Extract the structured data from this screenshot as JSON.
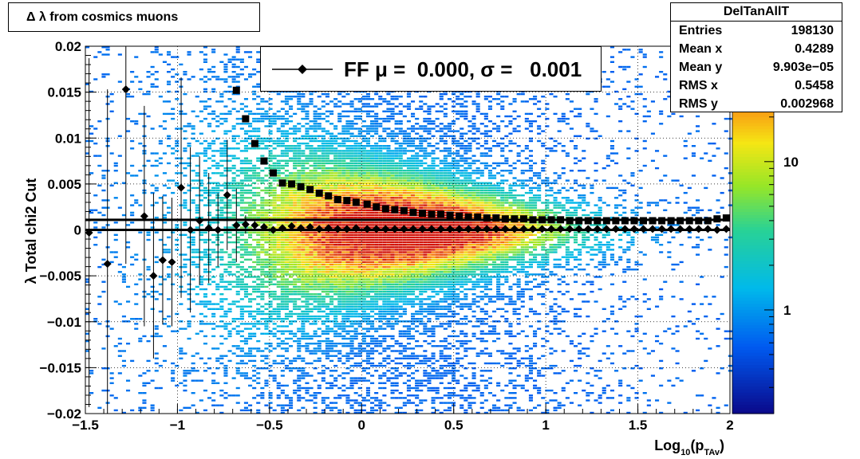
{
  "title": "Δ λ from cosmics muons",
  "stats": {
    "name": "DelTanAllT",
    "rows": [
      {
        "label": "Entries",
        "value": "198130"
      },
      {
        "label": "Mean x",
        "value": "0.4289"
      },
      {
        "label": "Mean y",
        "value": "9.903e−05"
      },
      {
        "label": "RMS x",
        "value": "0.5458"
      },
      {
        "label": "RMS y",
        "value": "0.002968"
      }
    ]
  },
  "legend": {
    "label": "FF μ =  0.000, σ =   0.001"
  },
  "colorbar": {
    "ticks": [
      {
        "label": "1",
        "value": 1
      },
      {
        "label": "10",
        "value": 10
      }
    ],
    "range": [
      0.2,
      60
    ]
  },
  "chart_data": {
    "type": "heatmap",
    "title": "Δ λ from cosmics muons",
    "xlabel_parts": {
      "base": "Log",
      "sub1": "10",
      "mid": "(p",
      "sub2": "TAv",
      "end": ")"
    },
    "ylabel": "λ  Total chi2 Cut",
    "xlim": [
      -1.5,
      2.0
    ],
    "ylim": [
      -0.02,
      0.02
    ],
    "grid": true,
    "colorbar_scale": "log",
    "xticks": [
      {
        "label": "−1.5",
        "value": -1.5
      },
      {
        "label": "−1",
        "value": -1
      },
      {
        "label": "−0.5",
        "value": -0.5
      },
      {
        "label": "0",
        "value": 0
      },
      {
        "label": "0.5",
        "value": 0.5
      },
      {
        "label": "1",
        "value": 1
      },
      {
        "label": "1.5",
        "value": 1.5
      },
      {
        "label": "2",
        "value": 2
      }
    ],
    "yticks": [
      {
        "label": "−0.02",
        "value": -0.02
      },
      {
        "label": "−0.015",
        "value": -0.015
      },
      {
        "label": "−0.01",
        "value": -0.01
      },
      {
        "label": "−0.005",
        "value": -0.005
      },
      {
        "label": "0",
        "value": 0
      },
      {
        "label": "0.005",
        "value": 0.005
      },
      {
        "label": "0.01",
        "value": 0.01
      },
      {
        "label": "0.015",
        "value": 0.015
      },
      {
        "label": "0.02",
        "value": 0.02
      }
    ],
    "series": [
      {
        "name": "FF",
        "marker": "diamond",
        "points": [
          {
            "x": -1.48,
            "y": -0.0003,
            "err": 0.019
          },
          {
            "x": -1.38,
            "y": -0.0037,
            "err": 0.019
          },
          {
            "x": -1.28,
            "y": 0.0153,
            "err": 0.019
          },
          {
            "x": -1.18,
            "y": 0.0015,
            "err": 0.012
          },
          {
            "x": -1.13,
            "y": -0.005,
            "err": 0.009
          },
          {
            "x": -1.08,
            "y": -0.0033,
            "err": 0.007
          },
          {
            "x": -1.03,
            "y": -0.0035,
            "err": 0.007
          },
          {
            "x": -0.98,
            "y": 0.0046,
            "err": 0.012
          },
          {
            "x": -0.93,
            "y": 0.0,
            "err": 0.009
          },
          {
            "x": -0.88,
            "y": 0.001,
            "err": 0.007
          },
          {
            "x": -0.83,
            "y": 0.0002,
            "err": 0.006
          },
          {
            "x": -0.78,
            "y": 0.0,
            "err": 0.004
          },
          {
            "x": -0.73,
            "y": 0.0038,
            "err": 0.006
          },
          {
            "x": -0.68,
            "y": 0.0005,
            "err": 0.004
          },
          {
            "x": -0.63,
            "y": 0.0006,
            "err": 0.001
          },
          {
            "x": -0.58,
            "y": 0.0005,
            "err": 0.0006
          },
          {
            "x": -0.53,
            "y": 0.0003,
            "err": 0.0004
          },
          {
            "x": -0.48,
            "y": 0.0,
            "err": 0.0003
          },
          {
            "x": -0.43,
            "y": 0.0002,
            "err": 0.0002
          },
          {
            "x": -0.38,
            "y": 0.0004,
            "err": 0.0002
          },
          {
            "x": -0.33,
            "y": 0.0002,
            "err": 0.0001
          },
          {
            "x": -0.28,
            "y": 0.0003,
            "err": 0.0001
          },
          {
            "x": -0.23,
            "y": 0.0001,
            "err": 0.0001
          },
          {
            "x": -0.18,
            "y": 0.0002,
            "err": 0.0001
          },
          {
            "x": -0.13,
            "y": 0.0001,
            "err": 0.0001
          },
          {
            "x": -0.08,
            "y": 0.0001,
            "err": 0.0001
          },
          {
            "x": -0.03,
            "y": 0.0002,
            "err": 0.0001
          },
          {
            "x": 0.03,
            "y": 0.0001,
            "err": 0.0001
          },
          {
            "x": 0.08,
            "y": 0.0001,
            "err": 0.0001
          },
          {
            "x": 0.13,
            "y": 0.0001,
            "err": 0.0001
          },
          {
            "x": 0.18,
            "y": 0.0001,
            "err": 0.0001
          },
          {
            "x": 0.23,
            "y": 0.0001,
            "err": 0.0001
          },
          {
            "x": 0.28,
            "y": 0.0001,
            "err": 0.0001
          },
          {
            "x": 0.33,
            "y": 0.0001,
            "err": 0.0001
          },
          {
            "x": 0.38,
            "y": 0.0001,
            "err": 0.0001
          },
          {
            "x": 0.43,
            "y": 0.0001,
            "err": 0.0001
          },
          {
            "x": 0.48,
            "y": 0.0001,
            "err": 0.0001
          },
          {
            "x": 0.53,
            "y": 0.0001,
            "err": 0.0001
          },
          {
            "x": 0.58,
            "y": 0.0001,
            "err": 0.0001
          },
          {
            "x": 0.63,
            "y": 0.0001,
            "err": 0.0001
          },
          {
            "x": 0.68,
            "y": 0.0001,
            "err": 0.0001
          },
          {
            "x": 0.73,
            "y": 0.0001,
            "err": 0.0001
          },
          {
            "x": 0.78,
            "y": 0.0001,
            "err": 0.0001
          },
          {
            "x": 0.83,
            "y": 0.0001,
            "err": 0.0001
          },
          {
            "x": 0.88,
            "y": 0.0001,
            "err": 0.0001
          },
          {
            "x": 0.93,
            "y": 0.0001,
            "err": 0.0001
          },
          {
            "x": 0.98,
            "y": 0.0001,
            "err": 0.0001
          },
          {
            "x": 1.03,
            "y": 0.0001,
            "err": 0.0001
          },
          {
            "x": 1.08,
            "y": 0.0001,
            "err": 0.0001
          },
          {
            "x": 1.13,
            "y": 0.0001,
            "err": 0.0001
          },
          {
            "x": 1.18,
            "y": 0.0001,
            "err": 0.0001
          },
          {
            "x": 1.23,
            "y": 0.0001,
            "err": 0.0001
          },
          {
            "x": 1.28,
            "y": 0.0001,
            "err": 0.0001
          },
          {
            "x": 1.33,
            "y": 0.0001,
            "err": 0.0001
          },
          {
            "x": 1.38,
            "y": 0.0001,
            "err": 0.0001
          },
          {
            "x": 1.43,
            "y": 0.0001,
            "err": 0.0001
          },
          {
            "x": 1.48,
            "y": 0.0001,
            "err": 0.0001
          },
          {
            "x": 1.53,
            "y": 0.0001,
            "err": 0.0001
          },
          {
            "x": 1.58,
            "y": 0.0001,
            "err": 0.0001
          },
          {
            "x": 1.63,
            "y": 0.0001,
            "err": 0.0001
          },
          {
            "x": 1.68,
            "y": 0.0001,
            "err": 0.0001
          },
          {
            "x": 1.73,
            "y": 0.0001,
            "err": 0.0001
          },
          {
            "x": 1.78,
            "y": 0.0001,
            "err": 0.0001
          },
          {
            "x": 1.83,
            "y": 0.0001,
            "err": 0.0001
          },
          {
            "x": 1.88,
            "y": 0.0001,
            "err": 0.0001
          },
          {
            "x": 1.93,
            "y": 0.0,
            "err": 0.0001
          },
          {
            "x": 1.98,
            "y": 0.0001,
            "err": 0.0001
          }
        ]
      },
      {
        "marker": "square",
        "points": [
          {
            "x": -0.68,
            "y": 0.0152
          },
          {
            "x": -0.63,
            "y": 0.0121
          },
          {
            "x": -0.58,
            "y": 0.0094
          },
          {
            "x": -0.53,
            "y": 0.0075
          },
          {
            "x": -0.48,
            "y": 0.0062
          },
          {
            "x": -0.43,
            "y": 0.0051
          },
          {
            "x": -0.38,
            "y": 0.005
          },
          {
            "x": -0.33,
            "y": 0.0047
          },
          {
            "x": -0.28,
            "y": 0.0044
          },
          {
            "x": -0.23,
            "y": 0.004
          },
          {
            "x": -0.18,
            "y": 0.0037
          },
          {
            "x": -0.13,
            "y": 0.0033
          },
          {
            "x": -0.08,
            "y": 0.0032
          },
          {
            "x": -0.03,
            "y": 0.003
          },
          {
            "x": 0.03,
            "y": 0.0028
          },
          {
            "x": 0.08,
            "y": 0.0025
          },
          {
            "x": 0.13,
            "y": 0.0023
          },
          {
            "x": 0.18,
            "y": 0.0022
          },
          {
            "x": 0.23,
            "y": 0.0021
          },
          {
            "x": 0.28,
            "y": 0.0019
          },
          {
            "x": 0.33,
            "y": 0.0018
          },
          {
            "x": 0.38,
            "y": 0.0017
          },
          {
            "x": 0.43,
            "y": 0.0017
          },
          {
            "x": 0.48,
            "y": 0.0016
          },
          {
            "x": 0.53,
            "y": 0.0015
          },
          {
            "x": 0.58,
            "y": 0.0014
          },
          {
            "x": 0.63,
            "y": 0.0014
          },
          {
            "x": 0.68,
            "y": 0.0013
          },
          {
            "x": 0.73,
            "y": 0.0013
          },
          {
            "x": 0.78,
            "y": 0.0012
          },
          {
            "x": 0.83,
            "y": 0.0012
          },
          {
            "x": 0.88,
            "y": 0.0012
          },
          {
            "x": 0.93,
            "y": 0.0011
          },
          {
            "x": 0.98,
            "y": 0.0011
          },
          {
            "x": 1.03,
            "y": 0.0011
          },
          {
            "x": 1.08,
            "y": 0.0011
          },
          {
            "x": 1.13,
            "y": 0.001
          },
          {
            "x": 1.18,
            "y": 0.001
          },
          {
            "x": 1.23,
            "y": 0.001
          },
          {
            "x": 1.28,
            "y": 0.001
          },
          {
            "x": 1.33,
            "y": 0.001
          },
          {
            "x": 1.38,
            "y": 0.001
          },
          {
            "x": 1.43,
            "y": 0.001
          },
          {
            "x": 1.48,
            "y": 0.001
          },
          {
            "x": 1.53,
            "y": 0.001
          },
          {
            "x": 1.58,
            "y": 0.001
          },
          {
            "x": 1.63,
            "y": 0.001
          },
          {
            "x": 1.68,
            "y": 0.001
          },
          {
            "x": 1.73,
            "y": 0.001
          },
          {
            "x": 1.78,
            "y": 0.001
          },
          {
            "x": 1.83,
            "y": 0.001
          },
          {
            "x": 1.88,
            "y": 0.001
          },
          {
            "x": 1.93,
            "y": 0.0012
          },
          {
            "x": 1.98,
            "y": 0.0013
          }
        ]
      }
    ],
    "reference_lines": [
      {
        "y": 0.0,
        "x_from": -1.5,
        "x_to": 2.0
      },
      {
        "y": 0.0011,
        "x_from": -1.5,
        "x_to": 2.0
      }
    ]
  }
}
